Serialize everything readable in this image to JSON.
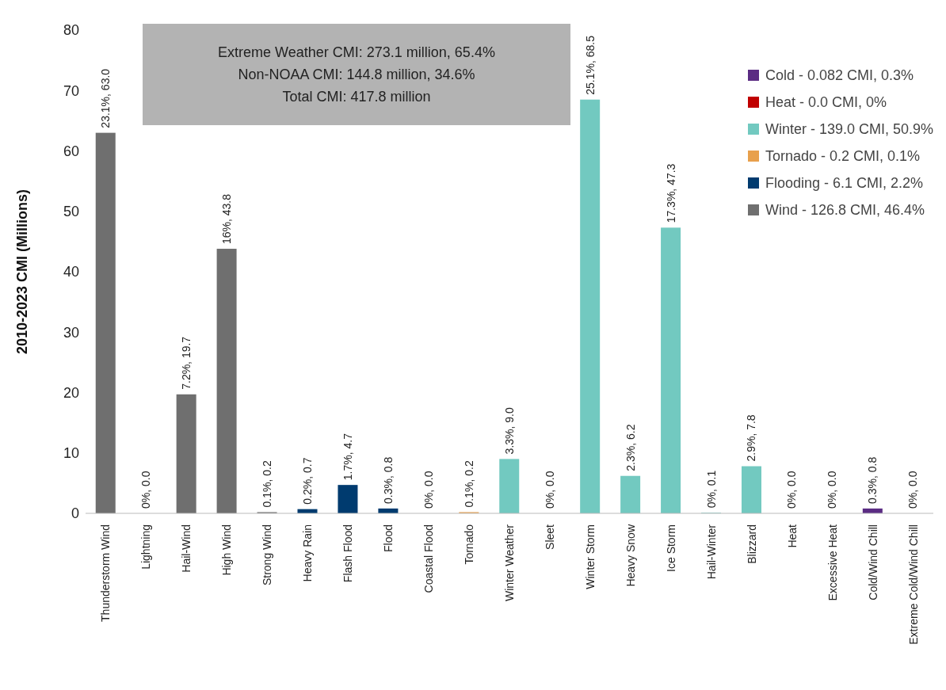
{
  "chart_data": {
    "type": "bar",
    "ylabel": "2010-2023 CMI (Millions)",
    "annotations": [
      "Extreme Weather CMI: 273.1 million, 65.4%",
      "Non-NOAA CMI: 144.8 million, 34.6%",
      "Total CMI: 417.8 million"
    ],
    "categories": [
      "Thunderstorm Wind",
      "Lightning",
      "Hail-Wind",
      "High Wind",
      "Strong Wind",
      "Heavy Rain",
      "Flash Flood",
      "Flood",
      "Coastal Flood",
      "Tornado",
      "Winter Weather",
      "Sleet",
      "Winter Storm",
      "Heavy Snow",
      "Ice Storm",
      "Hail-Winter",
      "Blizzard",
      "Heat",
      "Excessive Heat",
      "Cold/Wind Chill",
      "Extreme Cold/Wind Chill"
    ],
    "stacked": true,
    "ylim": [
      0,
      80
    ],
    "yticks": [
      0,
      10,
      20,
      30,
      40,
      50,
      60,
      70,
      80
    ],
    "grid": false,
    "legend": "top right",
    "series": [
      {
        "name": "Cold - 0.082 CMI, 0.3%",
        "color": "#5b2c83",
        "values": [
          null,
          null,
          null,
          null,
          null,
          null,
          null,
          null,
          null,
          null,
          null,
          null,
          null,
          null,
          null,
          null,
          null,
          null,
          null,
          0.8,
          0.0
        ],
        "value_labels": [
          null,
          null,
          null,
          null,
          null,
          null,
          null,
          null,
          null,
          null,
          null,
          null,
          null,
          null,
          null,
          null,
          null,
          null,
          null,
          "0.3%, 0.8",
          "0%, 0.0"
        ]
      },
      {
        "name": "Heat - 0.0 CMI, 0%",
        "color": "#c00000",
        "values": [
          null,
          null,
          null,
          null,
          null,
          null,
          null,
          null,
          null,
          null,
          null,
          null,
          null,
          null,
          null,
          null,
          null,
          0.0,
          0.0,
          null,
          null
        ],
        "value_labels": [
          null,
          null,
          null,
          null,
          null,
          null,
          null,
          null,
          null,
          null,
          null,
          null,
          null,
          null,
          null,
          null,
          null,
          "0%, 0.0",
          "0%, 0.0",
          null,
          null
        ]
      },
      {
        "name": "Winter - 139.0 CMI, 50.9%",
        "color": "#72c9c0",
        "values": [
          null,
          null,
          null,
          null,
          null,
          null,
          null,
          null,
          null,
          null,
          9.0,
          0.0,
          68.5,
          6.2,
          47.3,
          0.1,
          7.8,
          null,
          null,
          null,
          null
        ],
        "value_labels": [
          null,
          null,
          null,
          null,
          null,
          null,
          null,
          null,
          null,
          null,
          "3.3%, 9.0",
          "0%, 0.0",
          "25.1%, 68.5",
          "2.3%, 6.2",
          "17.3%, 47.3",
          "0%, 0.1",
          "2.9%, 7.8",
          null,
          null,
          null,
          null
        ]
      },
      {
        "name": "Tornado - 0.2 CMI, 0.1%",
        "color": "#e8a04c",
        "values": [
          null,
          null,
          null,
          null,
          null,
          null,
          null,
          null,
          null,
          0.2,
          null,
          null,
          null,
          null,
          null,
          null,
          null,
          null,
          null,
          null,
          null
        ],
        "value_labels": [
          null,
          null,
          null,
          null,
          null,
          null,
          null,
          null,
          null,
          "0.1%, 0.2",
          null,
          null,
          null,
          null,
          null,
          null,
          null,
          null,
          null,
          null,
          null
        ]
      },
      {
        "name": "Flooding - 6.1 CMI, 2.2%",
        "color": "#003b6f",
        "values": [
          null,
          null,
          null,
          null,
          null,
          0.7,
          4.7,
          0.8,
          0.0,
          null,
          null,
          null,
          null,
          null,
          null,
          null,
          null,
          null,
          null,
          null,
          null
        ],
        "value_labels": [
          null,
          null,
          null,
          null,
          null,
          "0.2%, 0.7",
          "1.7%, 4.7",
          "0.3%, 0.8",
          "0%, 0.0",
          null,
          null,
          null,
          null,
          null,
          null,
          null,
          null,
          null,
          null,
          null,
          null
        ]
      },
      {
        "name": "Wind - 126.8 CMI, 46.4%",
        "color": "#6f6f6f",
        "values": [
          63.0,
          0.0,
          19.7,
          43.8,
          0.2,
          null,
          null,
          null,
          null,
          null,
          null,
          null,
          null,
          null,
          null,
          null,
          null,
          null,
          null,
          null,
          null
        ],
        "value_labels": [
          "23.1%, 63.0",
          "0%, 0.0",
          "7.2%, 19.7",
          "16%, 43.8",
          "0.1%, 0.2",
          null,
          null,
          null,
          null,
          null,
          null,
          null,
          null,
          null,
          null,
          null,
          null,
          null,
          null,
          null,
          null
        ]
      }
    ]
  }
}
